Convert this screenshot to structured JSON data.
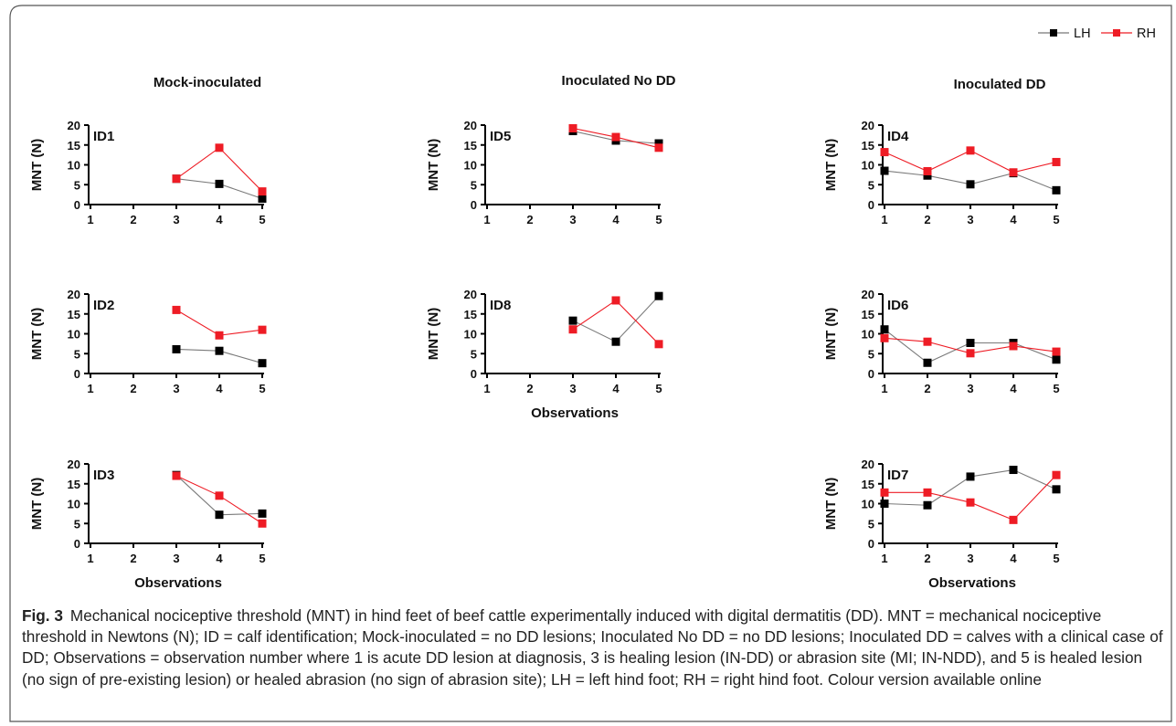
{
  "figure": {
    "legend": [
      {
        "label": "LH",
        "color": "#000000"
      },
      {
        "label": "RH",
        "color": "#ee1c25"
      }
    ],
    "column_titles": [
      "Mock-inoculated",
      "Inoculated No DD",
      "Inoculated DD"
    ],
    "xlabel": "Observations",
    "ylabel": "MNT (N)",
    "caption_label": "Fig. 3",
    "caption_text": "Mechanical nociceptive threshold (MNT) in hind feet of beef cattle experimentally induced with digital dermatitis (DD). MNT = mechanical nociceptive threshold in Newtons (N); ID = calf identification; Mock-inoculated = no DD lesions; Inoculated No DD = no DD lesions; Inoculated DD = calves with a clinical case of DD; Observations = observation number where 1 is acute DD lesion at diagnosis, 3 is healing lesion (IN-DD) or abrasion site (MI; IN-NDD), and 5 is healed lesion (no sign of pre-existing lesion) or healed abrasion (no sign of abrasion site); LH = left hind foot; RH = right hind foot. Colour version available online"
  },
  "chart_data": [
    {
      "type": "line",
      "title": "ID1",
      "group": "Mock-inoculated",
      "x": [
        1,
        2,
        3,
        4,
        5
      ],
      "xticks": [
        "1",
        "2",
        "3",
        "4",
        "5"
      ],
      "ylim": [
        0,
        20
      ],
      "yticks": [
        "0",
        "5",
        "10",
        "15",
        "20"
      ],
      "ylabel": "MNT (N)",
      "xlabel": "",
      "series": [
        {
          "name": "LH",
          "values": [
            null,
            null,
            6.5,
            5.2,
            1.5
          ]
        },
        {
          "name": "RH",
          "values": [
            null,
            null,
            6.5,
            14.3,
            3.3
          ]
        }
      ]
    },
    {
      "type": "line",
      "title": "ID5",
      "group": "Inoculated No DD",
      "x": [
        1,
        2,
        3,
        4,
        5
      ],
      "xticks": [
        "1",
        "2",
        "3",
        "4",
        "5"
      ],
      "ylim": [
        0,
        20
      ],
      "yticks": [
        "0",
        "5",
        "10",
        "15",
        "20"
      ],
      "ylabel": "MNT (N)",
      "xlabel": "",
      "series": [
        {
          "name": "LH",
          "values": [
            null,
            null,
            18.5,
            16.1,
            15.4
          ]
        },
        {
          "name": "RH",
          "values": [
            null,
            null,
            19.2,
            17.0,
            14.3
          ]
        }
      ]
    },
    {
      "type": "line",
      "title": "ID4",
      "group": "Inoculated DD",
      "x": [
        1,
        2,
        3,
        4,
        5
      ],
      "xticks": [
        "1",
        "2",
        "3",
        "4",
        "5"
      ],
      "ylim": [
        0,
        20
      ],
      "yticks": [
        "0",
        "5",
        "10",
        "15",
        "20"
      ],
      "ylabel": "MNT (N)",
      "xlabel": "",
      "series": [
        {
          "name": "LH",
          "values": [
            8.5,
            7.3,
            5.1,
            7.9,
            3.6
          ]
        },
        {
          "name": "RH",
          "values": [
            13.2,
            8.4,
            13.6,
            8.1,
            10.7
          ]
        }
      ]
    },
    {
      "type": "line",
      "title": "ID2",
      "group": "Mock-inoculated",
      "x": [
        1,
        2,
        3,
        4,
        5
      ],
      "xticks": [
        "1",
        "2",
        "3",
        "4",
        "5"
      ],
      "ylim": [
        0,
        20
      ],
      "yticks": [
        "0",
        "5",
        "10",
        "15",
        "20"
      ],
      "ylabel": "MNT (N)",
      "xlabel": "",
      "series": [
        {
          "name": "LH",
          "values": [
            null,
            null,
            6.1,
            5.7,
            2.6
          ]
        },
        {
          "name": "RH",
          "values": [
            null,
            null,
            16.0,
            9.6,
            11.0
          ]
        }
      ]
    },
    {
      "type": "line",
      "title": "ID8",
      "group": "Inoculated No DD",
      "x": [
        1,
        2,
        3,
        4,
        5
      ],
      "xticks": [
        "1",
        "2",
        "3",
        "4",
        "5"
      ],
      "ylim": [
        0,
        20
      ],
      "yticks": [
        "0",
        "5",
        "10",
        "15",
        "20"
      ],
      "ylabel": "MNT (N)",
      "xlabel": "Observations",
      "series": [
        {
          "name": "LH",
          "values": [
            null,
            null,
            13.3,
            8.0,
            19.5
          ]
        },
        {
          "name": "RH",
          "values": [
            null,
            null,
            11.1,
            18.4,
            7.4
          ]
        }
      ]
    },
    {
      "type": "line",
      "title": "ID6",
      "group": "Inoculated DD",
      "x": [
        1,
        2,
        3,
        4,
        5
      ],
      "xticks": [
        "1",
        "2",
        "3",
        "4",
        "5"
      ],
      "ylim": [
        0,
        20
      ],
      "yticks": [
        "0",
        "5",
        "10",
        "15",
        "20"
      ],
      "ylabel": "MNT (N)",
      "xlabel": "",
      "series": [
        {
          "name": "LH",
          "values": [
            11.1,
            2.7,
            7.7,
            7.7,
            3.5
          ]
        },
        {
          "name": "RH",
          "values": [
            8.9,
            8.0,
            5.1,
            6.9,
            5.5
          ]
        }
      ]
    },
    {
      "type": "line",
      "title": "ID3",
      "group": "Mock-inoculated",
      "x": [
        1,
        2,
        3,
        4,
        5
      ],
      "xticks": [
        "1",
        "2",
        "3",
        "4",
        "5"
      ],
      "ylim": [
        0,
        20
      ],
      "yticks": [
        "0",
        "5",
        "10",
        "15",
        "20"
      ],
      "ylabel": "MNT (N)",
      "xlabel": "Observations",
      "series": [
        {
          "name": "LH",
          "values": [
            null,
            null,
            17.2,
            7.2,
            7.5
          ]
        },
        {
          "name": "RH",
          "values": [
            null,
            null,
            17.0,
            12.0,
            5.0
          ]
        }
      ]
    },
    {
      "type": "line",
      "title": "ID7",
      "group": "Inoculated DD",
      "x": [
        1,
        2,
        3,
        4,
        5
      ],
      "xticks": [
        "1",
        "2",
        "3",
        "4",
        "5"
      ],
      "ylim": [
        0,
        20
      ],
      "yticks": [
        "0",
        "5",
        "10",
        "15",
        "20"
      ],
      "ylabel": "MNT (N)",
      "xlabel": "Observations",
      "series": [
        {
          "name": "LH",
          "values": [
            10.0,
            9.6,
            16.8,
            18.5,
            13.6
          ]
        },
        {
          "name": "RH",
          "values": [
            12.8,
            12.8,
            10.3,
            5.9,
            17.2
          ]
        }
      ]
    }
  ]
}
